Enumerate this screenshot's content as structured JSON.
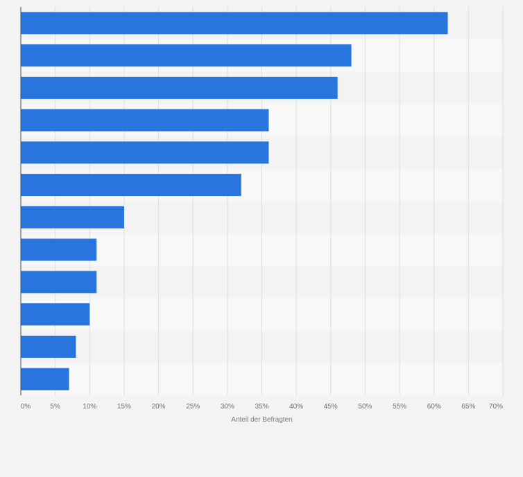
{
  "chart_data": {
    "type": "bar",
    "orientation": "horizontal",
    "title": "",
    "xlabel": "Anteil der Befragten",
    "ylabel": "",
    "xlim": [
      0,
      70
    ],
    "ticks": [
      {
        "value": 0,
        "label": "0%"
      },
      {
        "value": 5,
        "label": "5%"
      },
      {
        "value": 10,
        "label": "10%"
      },
      {
        "value": 15,
        "label": "15%"
      },
      {
        "value": 20,
        "label": "20%"
      },
      {
        "value": 25,
        "label": "25%"
      },
      {
        "value": 30,
        "label": "30%"
      },
      {
        "value": 35,
        "label": "35%"
      },
      {
        "value": 40,
        "label": "40%"
      },
      {
        "value": 45,
        "label": "45%"
      },
      {
        "value": 50,
        "label": "50%"
      },
      {
        "value": 55,
        "label": "55%"
      },
      {
        "value": 60,
        "label": "60%"
      },
      {
        "value": 65,
        "label": "65%"
      },
      {
        "value": 70,
        "label": "70%"
      }
    ],
    "values": [
      62,
      48,
      46,
      36,
      36,
      32,
      15,
      11,
      11,
      10,
      8,
      7
    ],
    "grid": true,
    "bar_color": "#2876dd",
    "grid_color": "#dcdcdc",
    "stripe_colors": [
      "#f3f3f4",
      "#f8f8f9"
    ]
  }
}
